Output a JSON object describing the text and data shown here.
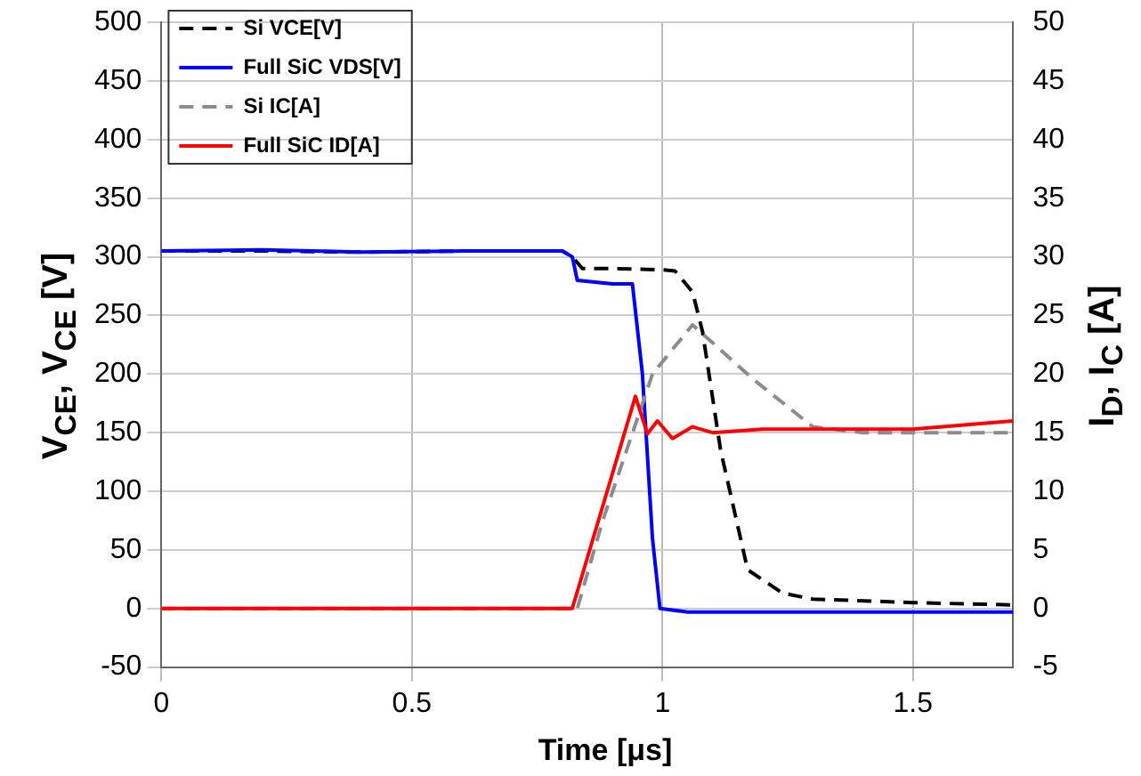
{
  "chart_data": {
    "type": "line",
    "xlabel": "Time  [μs]",
    "ylabel": "V$_{CE}$, V$_{CE}$ [V]",
    "y2label": "I$_{D}$, I$_{C}$ [A]",
    "xlim": [
      0,
      1.7
    ],
    "xticks": [
      0,
      0.5,
      1,
      1.5
    ],
    "ylim": [
      -50,
      500
    ],
    "yticks": [
      -50,
      0,
      50,
      100,
      150,
      200,
      250,
      300,
      350,
      400,
      450,
      500
    ],
    "y2lim": [
      -5,
      50
    ],
    "y2ticks": [
      -5,
      0,
      5,
      10,
      15,
      20,
      25,
      30,
      35,
      40,
      45,
      50
    ],
    "grid": true,
    "legend": "top left",
    "marker": "none",
    "series": [
      {
        "name": "Si VCE[V]",
        "color": "#000000",
        "line_style": "dashed",
        "x": [
          0,
          0.2,
          0.4,
          0.6,
          0.8,
          0.82,
          0.84,
          0.9,
          1.0,
          1.025,
          1.06,
          1.08,
          1.116,
          1.17,
          1.24,
          1.3,
          1.5,
          1.7
        ],
        "values": [
          305,
          305,
          304,
          305,
          305,
          300,
          290,
          290,
          289,
          288,
          270,
          236,
          135,
          33,
          13,
          8,
          5,
          3
        ]
      },
      {
        "name": "Full SiC VDS[V]",
        "color": "#0000ff",
        "line_style": "solid",
        "x": [
          0,
          0.2,
          0.4,
          0.6,
          0.8,
          0.82,
          0.83,
          0.9,
          0.94,
          0.96,
          0.98,
          0.995,
          1.05,
          1.2,
          1.4,
          1.7
        ],
        "values": [
          305,
          306,
          304,
          305,
          305,
          300,
          280,
          277,
          277,
          200,
          60,
          0,
          -3,
          -3,
          -3,
          -3
        ]
      },
      {
        "name": "Si IC[A]",
        "color": "#8c8c8c",
        "line_style": "dashed",
        "axis": "y2",
        "x": [
          0,
          0.6,
          0.83,
          0.88,
          0.98,
          1.06,
          1.18,
          1.3,
          1.4,
          1.7
        ],
        "values": [
          0,
          0,
          0,
          7.4,
          20,
          24.2,
          19.6,
          15.5,
          15,
          15
        ]
      },
      {
        "name": "Full SiC ID[A]",
        "color": "#ff0000",
        "line_style": "solid",
        "axis": "y2",
        "x": [
          0,
          0.6,
          0.82,
          0.946,
          0.97,
          0.99,
          1.02,
          1.06,
          1.1,
          1.2,
          1.5,
          1.7
        ],
        "values": [
          0,
          0,
          0,
          18.1,
          14.9,
          16,
          14.5,
          15.5,
          15,
          15.3,
          15.3,
          16
        ]
      }
    ]
  }
}
